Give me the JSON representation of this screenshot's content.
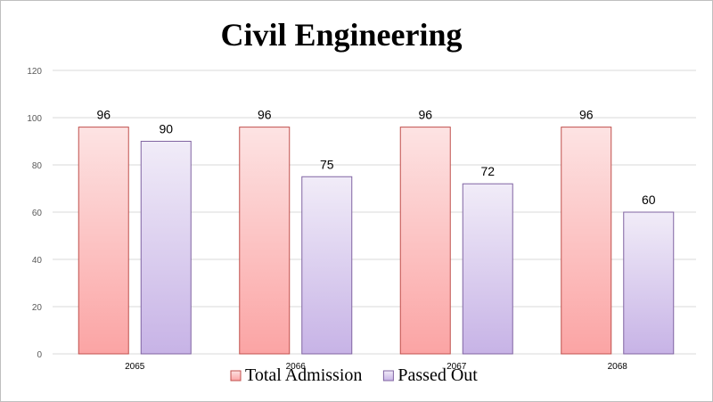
{
  "chart_data": {
    "type": "bar",
    "title": "Civil Engineering",
    "categories": [
      "2065",
      "2066",
      "2067",
      "2068"
    ],
    "series": [
      {
        "name": "Total Admission",
        "values": [
          96,
          96,
          96,
          96
        ],
        "color": "#c0504d",
        "fill_top": "#fde3e3",
        "fill_bottom": "#fba4a4"
      },
      {
        "name": "Passed Out",
        "values": [
          90,
          75,
          72,
          60
        ],
        "color": "#8064a2",
        "fill_top": "#f1ecf8",
        "fill_bottom": "#c7b3e6"
      }
    ],
    "yticks": [
      0,
      20,
      40,
      60,
      80,
      100,
      120
    ],
    "ylim": [
      0,
      120
    ],
    "grid": true,
    "legend": "bottom"
  }
}
